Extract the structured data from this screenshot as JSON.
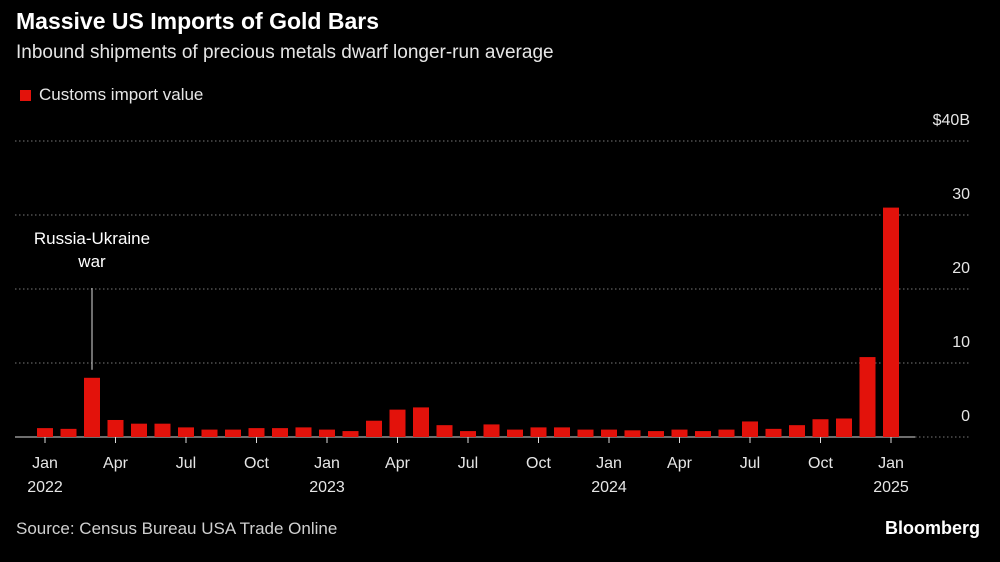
{
  "chart_data": {
    "type": "bar",
    "title": "Massive US Imports of Gold Bars",
    "subtitle": "Inbound shipments of precious metals dwarf longer-run average",
    "source": "Source: Census Bureau USA Trade Online",
    "brand": "Bloomberg",
    "categories": [
      "Jan 2022",
      null,
      null,
      "Apr",
      null,
      null,
      "Jul",
      null,
      null,
      "Oct",
      null,
      null,
      "Jan 2023",
      null,
      null,
      "Apr",
      null,
      null,
      "Jul",
      null,
      null,
      "Oct",
      null,
      null,
      "Jan 2024",
      null,
      null,
      "Apr",
      null,
      null,
      "Jul",
      null,
      null,
      "Oct",
      null,
      null,
      "Jan 2025"
    ],
    "series": [
      {
        "name": "Customs import value",
        "color": "#e3120b",
        "values": [
          1.2,
          1.1,
          8.0,
          2.3,
          1.8,
          1.8,
          1.3,
          1.0,
          1.0,
          1.2,
          1.2,
          1.3,
          1.0,
          0.8,
          2.2,
          3.7,
          4.0,
          1.6,
          0.8,
          1.7,
          1.0,
          1.3,
          1.3,
          1.0,
          1.0,
          0.9,
          0.8,
          1.0,
          0.8,
          1.0,
          2.1,
          1.1,
          1.6,
          2.4,
          2.5,
          10.8,
          31.0
        ]
      }
    ],
    "ylim": [
      0,
      40
    ],
    "yticks": [
      0,
      10,
      20,
      30,
      {
        "value": 40,
        "label": "$40B"
      }
    ],
    "grid": true,
    "annotations": [
      {
        "text": "Russia-Ukraine war",
        "index": 2
      }
    ]
  }
}
